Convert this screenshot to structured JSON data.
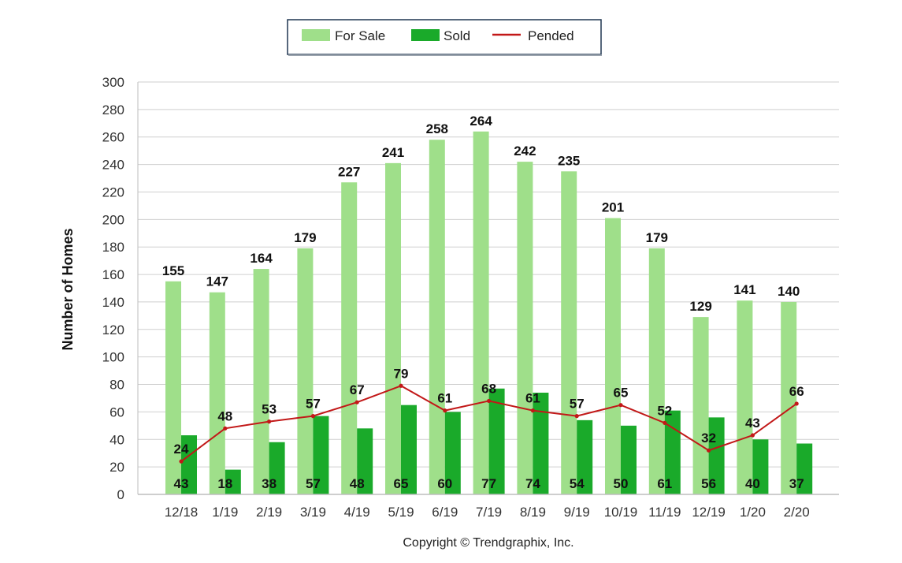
{
  "chart_data": {
    "type": "bar",
    "categories": [
      "12/18",
      "1/19",
      "2/19",
      "3/19",
      "4/19",
      "5/19",
      "6/19",
      "7/19",
      "8/19",
      "9/19",
      "10/19",
      "11/19",
      "12/19",
      "1/20",
      "2/20"
    ],
    "series": [
      {
        "name": "For Sale",
        "kind": "bar",
        "color": "#9fdf8a",
        "values": [
          155,
          147,
          164,
          179,
          227,
          241,
          258,
          264,
          242,
          235,
          201,
          179,
          129,
          141,
          140
        ]
      },
      {
        "name": "Sold",
        "kind": "bar",
        "color": "#1aaa2a",
        "values": [
          43,
          18,
          38,
          57,
          48,
          65,
          60,
          77,
          74,
          54,
          50,
          61,
          56,
          40,
          37
        ]
      },
      {
        "name": "Pended",
        "kind": "line",
        "color": "#c21818",
        "values": [
          24,
          48,
          53,
          57,
          67,
          79,
          61,
          68,
          61,
          57,
          65,
          52,
          32,
          43,
          66
        ]
      }
    ],
    "title": "",
    "xlabel": "",
    "ylabel": "Number of Homes",
    "ylim": [
      0,
      300
    ],
    "yticks": [
      0,
      20,
      40,
      60,
      80,
      100,
      120,
      140,
      160,
      180,
      200,
      220,
      240,
      260,
      280,
      300
    ],
    "grid": true,
    "legend_position": "top-center"
  },
  "footer": {
    "copyright": "Copyright © Trendgraphix, Inc."
  }
}
